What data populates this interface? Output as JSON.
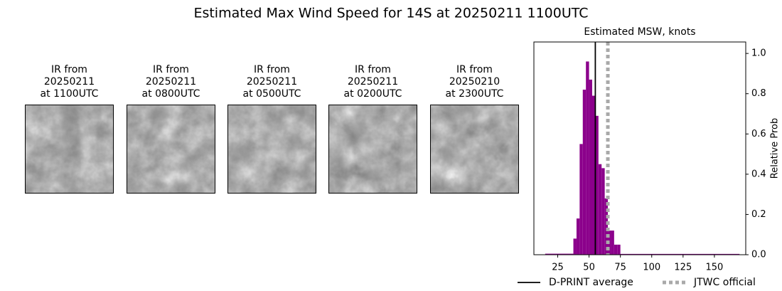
{
  "title": "Estimated Max Wind Speed for 14S at 20250211 1100UTC",
  "panels": [
    {
      "lines": [
        "IR from",
        "20250211",
        "at 1100UTC"
      ]
    },
    {
      "lines": [
        "IR from",
        "20250211",
        "at 0800UTC"
      ]
    },
    {
      "lines": [
        "IR from",
        "20250211",
        "at 0500UTC"
      ]
    },
    {
      "lines": [
        "IR from",
        "20250211",
        "at 0200UTC"
      ]
    },
    {
      "lines": [
        "IR from",
        "20250210",
        "at 2300UTC"
      ]
    }
  ],
  "chart_data": {
    "type": "histogram",
    "title": "Estimated MSW, knots",
    "y_label": "Relative Prob",
    "color": "#8b008b",
    "bins": [
      15,
      37.5,
      40,
      42.5,
      45,
      47.5,
      50,
      52.5,
      55,
      57.5,
      60,
      62.5,
      65,
      67.5,
      70,
      72.5,
      75,
      170
    ],
    "values": [
      0.005,
      0.08,
      0.18,
      0.55,
      0.82,
      0.96,
      0.87,
      0.79,
      0.69,
      0.45,
      0.43,
      0.28,
      0.12,
      0.12,
      0.05,
      0.05,
      0.004
    ],
    "xlim": [
      6,
      175
    ],
    "xticks": [
      25,
      50,
      75,
      100,
      125,
      150
    ],
    "ylim": [
      0,
      1.057
    ],
    "yticks": [
      {
        "value": 0,
        "label": "0.0"
      },
      {
        "value": 0.2,
        "label": "0.2"
      },
      {
        "value": 0.4,
        "label": "0.4"
      },
      {
        "value": 0.6,
        "label": "0.6"
      },
      {
        "value": 0.8,
        "label": "0.8"
      },
      {
        "value": 1,
        "label": "1.0"
      }
    ],
    "lines": [
      {
        "name": "D-PRINT average",
        "value": 55,
        "color": "#000000",
        "style": "solid"
      },
      {
        "name": "JTWC official",
        "value": 65,
        "color": "#a9a9a9",
        "style": "dotted"
      }
    ]
  }
}
